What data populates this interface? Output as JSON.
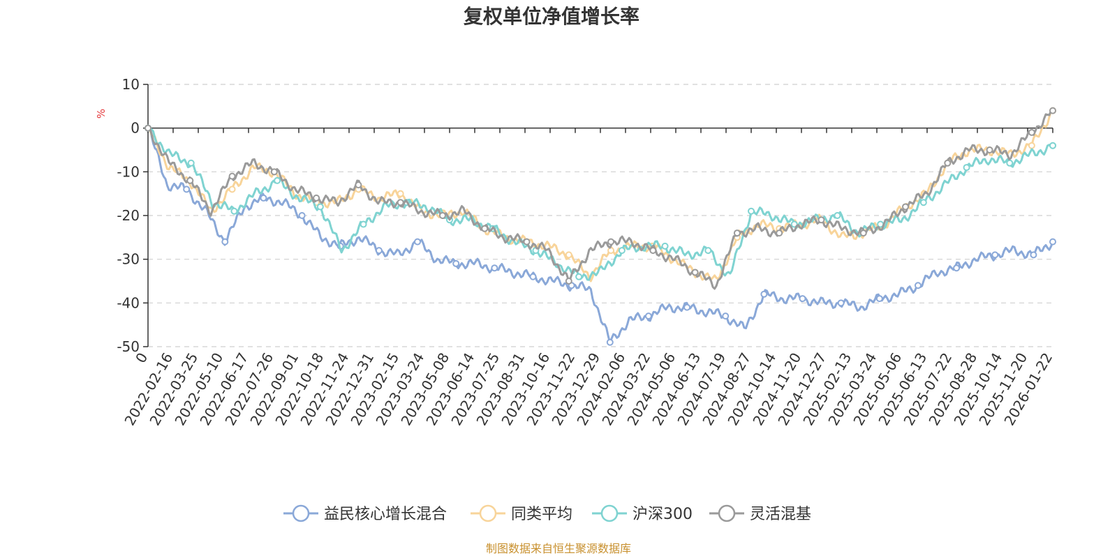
{
  "chart_data": {
    "type": "line",
    "title": "复权单位净值增长率",
    "ylabel": "%",
    "xlabel": "",
    "ylim": [
      -50,
      10
    ],
    "yticks": [
      10,
      0,
      -10,
      -20,
      -30,
      -40,
      -50
    ],
    "xtick_labels": [
      "0",
      "2022-02-16",
      "2022-03-25",
      "2022-05-10",
      "2022-06-17",
      "2022-07-26",
      "2022-09-01",
      "2022-10-18",
      "2022-11-24",
      "2022-12-31",
      "2023-02-15",
      "2023-03-24",
      "2023-05-08",
      "2023-06-14",
      "2023-07-25",
      "2023-08-31",
      "2023-10-16",
      "2023-11-22",
      "2023-12-29",
      "2024-02-06",
      "2024-03-22",
      "2024-05-06",
      "2024-06-13",
      "2024-07-19",
      "2024-08-27",
      "2024-10-14",
      "2024-11-20",
      "2024-12-27",
      "2025-02-13",
      "2025-03-24",
      "2025-05-06",
      "2025-06-13",
      "2025-07-22",
      "2025-08-28",
      "2025-10-14",
      "2025-11-20",
      "2026-01-22"
    ],
    "series": [
      {
        "name": "益民核心增长混合",
        "color": "#8aa8d8",
        "values": [
          0,
          -13,
          -14,
          -19,
          -26,
          -18,
          -16,
          -17,
          -20,
          -25,
          -27,
          -25,
          -28,
          -29,
          -26,
          -30,
          -31,
          -31,
          -32,
          -33,
          -34,
          -35,
          -36,
          -37,
          -49,
          -44,
          -43,
          -41,
          -41,
          -42,
          -43,
          -46,
          -38,
          -39,
          -39,
          -40,
          -40,
          -41,
          -39,
          -38,
          -36,
          -33,
          -32,
          -30,
          -29,
          -28,
          -29,
          -26
        ]
      },
      {
        "name": "同类平均",
        "color": "#f8d49a",
        "values": [
          0,
          -9,
          -12,
          -19,
          -14,
          -9,
          -10,
          -15,
          -17,
          -17,
          -14,
          -16,
          -15,
          -19,
          -20,
          -19,
          -23,
          -25,
          -26,
          -27,
          -29,
          -34,
          -28,
          -27,
          -27,
          -30,
          -33,
          -35,
          -25,
          -22,
          -23,
          -22,
          -21,
          -25,
          -24,
          -22,
          -18,
          -15,
          -8,
          -5,
          -5,
          -6,
          -4,
          4
        ]
      },
      {
        "name": "沪深300",
        "color": "#7fd3d1",
        "values": [
          0,
          -6,
          -8,
          -17,
          -19,
          -15,
          -12,
          -16,
          -18,
          -28,
          -22,
          -18,
          -17,
          -18,
          -21,
          -21,
          -23,
          -26,
          -28,
          -31,
          -34,
          -33,
          -28,
          -27,
          -27,
          -29,
          -28,
          -34,
          -19,
          -20,
          -22,
          -21,
          -20,
          -24,
          -22,
          -21,
          -17,
          -13,
          -9,
          -7,
          -8,
          -6,
          -4
        ]
      },
      {
        "name": "灵活混基",
        "color": "#9a9a9a",
        "values": [
          0,
          -8,
          -12,
          -19,
          -11,
          -8,
          -10,
          -14,
          -16,
          -17,
          -13,
          -17,
          -17,
          -19,
          -20,
          -19,
          -23,
          -25,
          -26,
          -28,
          -35,
          -28,
          -26,
          -26,
          -28,
          -30,
          -33,
          -36,
          -24,
          -23,
          -24,
          -22,
          -21,
          -23,
          -24,
          -22,
          -18,
          -15,
          -8,
          -5,
          -5,
          -6,
          -1,
          4
        ]
      }
    ]
  },
  "source": "制图数据来自恒生聚源数据库"
}
